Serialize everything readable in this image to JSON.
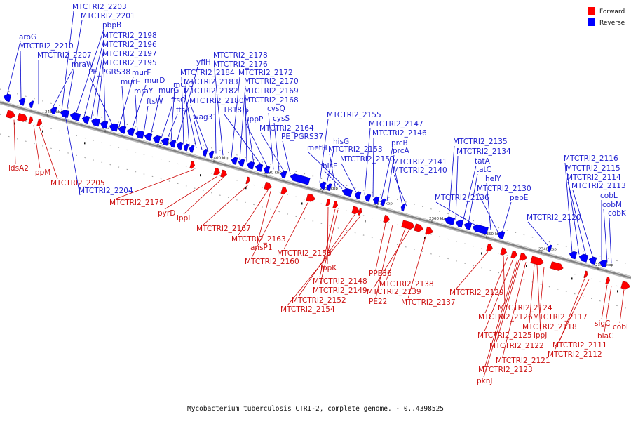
{
  "caption": "Mycobacterium tuberculosis CTRI-2, complete genome. - 0..4398525",
  "colors": {
    "forward": "#ff0000",
    "reverse": "#0000ff",
    "axis": "#808080",
    "leader_forward": "#cc0000",
    "leader_reverse": "#0000cc"
  },
  "legend": [
    {
      "label": "Forward",
      "color": "#ff0000"
    },
    {
      "label": "Reverse",
      "color": "#0000ff"
    }
  ],
  "axis_ticks": [
    "2430 kbp",
    "2420 kbp",
    "2410 kbp",
    "2400 kbp",
    "2390 kbp",
    "2380 kbp",
    "2370 kbp",
    "2360 kbp",
    "2350 kbp",
    "2340 kbp",
    "2330 kbp"
  ],
  "reverse_labels": [
    "aroG",
    "MTCTRI2_2210",
    "MTCTRI2_2207",
    "mraW",
    "MTCTRI2_2203",
    "MTCTRI2_2201",
    "pbpB",
    "MTCTRI2_2198",
    "MTCTRI2_2196",
    "MTCTRI2_2197",
    "MTCTRI2_2195",
    "PE_PGRS38",
    "murF",
    "murE",
    "murD",
    "mraY",
    "ftsW",
    "murG",
    "ftsQ",
    "ftsZ",
    "murC",
    "yfiH",
    "MTCTRI2_2184",
    "MTCTRI2_2183",
    "MTCTRI2_2182",
    "wag31",
    "MTCTRI2_2180",
    "MTCTRI2_2178",
    "MTCTRI2_2176",
    "MTCTRI2_2172",
    "MTCTRI2_2170",
    "MTCTRI2_2169",
    "MTCTRI2_2168",
    "TB18.6",
    "uppP",
    "cysQ",
    "cysS",
    "MTCTRI2_2164",
    "PE_PGRS37",
    "MTCTRI2_2155",
    "hisG",
    "MTCTRI2_2153",
    "hisE",
    "metH",
    "MTCTRI2_2150",
    "MTCTRI2_2147",
    "MTCTRI2_2146",
    "prcB",
    "prcA",
    "MTCTRI2_2141",
    "MTCTRI2_2140",
    "MTCTRI2_2135",
    "MTCTRI2_2134",
    "tatA",
    "tatC",
    "helY",
    "MTCTRI2_2130",
    "MTCTRI2_2136",
    "pepE",
    "MTCTRI2_2120",
    "MTCTRI2_2116",
    "MTCTRI2_2115",
    "MTCTRI2_2114",
    "MTCTRI2_2113",
    "cobL",
    "cobM",
    "cobK",
    "MTCTRI2_2204"
  ],
  "forward_labels": [
    "idsA2",
    "lppM",
    "MTCTRI2_2205",
    "MTCTRI2_2179",
    "pyrD",
    "lppL",
    "MTCTRI2_2167",
    "MTCTRI2_2163",
    "ansP1",
    "MTCTRI2_2160",
    "MTCTRI2_2158",
    "lppK",
    "MTCTRI2_2148",
    "MTCTRI2_2149",
    "MTCTRI2_2152",
    "MTCTRI2_2154",
    "PPE36",
    "MTCTRI2_2138",
    "MTCTRI2_2139",
    "PE22",
    "MTCTRI2_2137",
    "MTCTRI2_2129",
    "MTCTRI2_2124",
    "MTCTRI2_2126",
    "MTCTRI2_2117",
    "MTCTRI2_2118",
    "lppJ",
    "MTCTRI2_2125",
    "MTCTRI2_2122",
    "MTCTRI2_2121",
    "MTCTRI2_2123",
    "pknJ",
    "MTCTRI2_2111",
    "MTCTRI2_2112",
    "sigC",
    "blaC",
    "cobI"
  ]
}
